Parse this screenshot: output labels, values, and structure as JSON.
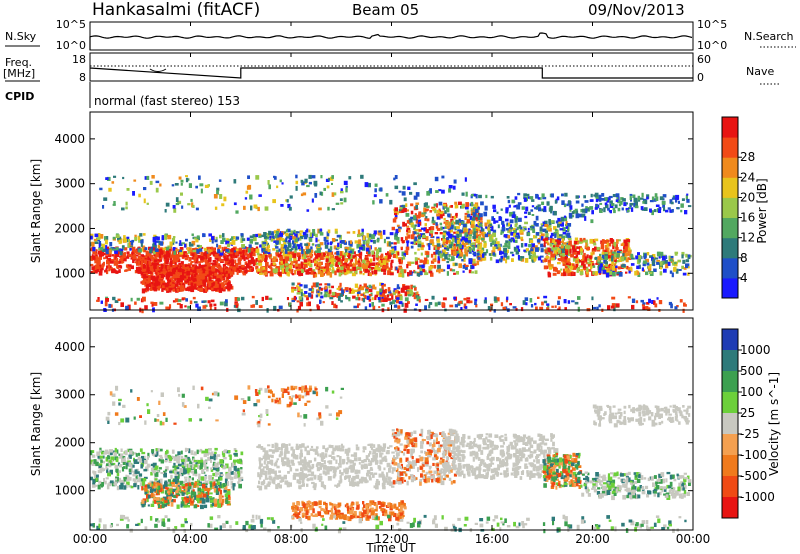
{
  "header": {
    "station": "Hankasalmi (fitACF)",
    "beam": "Beam 05",
    "date": "09/Nov/2013"
  },
  "chart_data": [
    {
      "type": "line",
      "name": "noise",
      "left_label": "N.Sky",
      "right_label": "N.Search",
      "left_ticks": [
        "10^5",
        "10^0"
      ],
      "right_ticks": [
        "10^5",
        "10^0"
      ],
      "right_legend_style": "dotted"
    },
    {
      "type": "line",
      "name": "frequency",
      "left_label_line1": "Freq.",
      "left_label_line2": "[MHz]",
      "left_ticks": [
        "18",
        "8"
      ],
      "right_label": "Nave",
      "right_ticks": [
        "60",
        "0"
      ],
      "right_legend_style": "dotted",
      "cpid_label": "CPID",
      "cpid_text": "normal (fast stereo) 153",
      "freq_steps": [
        [
          0,
          1
        ],
        [
          6,
          0
        ],
        [
          6,
          1
        ],
        [
          18,
          1
        ],
        [
          18,
          0
        ],
        [
          24,
          0
        ]
      ]
    },
    {
      "type": "heatmap",
      "name": "power",
      "ylabel": "Slant Range [km]",
      "yticks": [
        1000,
        2000,
        3000,
        4000
      ],
      "ylim": [
        180,
        4600
      ],
      "colorbar_label": "Power [dB]",
      "colorbar_ticks": [
        "4",
        "8",
        "12",
        "16",
        "20",
        "24",
        "28"
      ],
      "colorbar_colors": [
        "#1a1aff",
        "#1f4fc8",
        "#2e7a7a",
        "#52a860",
        "#9ac84a",
        "#e8c41c",
        "#f08a1c",
        "#f24a16",
        "#e81412"
      ]
    },
    {
      "type": "heatmap",
      "name": "velocity",
      "ylabel": "Slant Range [km]",
      "yticks": [
        1000,
        2000,
        3000,
        4000
      ],
      "ylim": [
        180,
        4600
      ],
      "colorbar_label": "Velocity [m s^-1]",
      "colorbar_ticks": [
        "1000",
        "500",
        "100",
        "25",
        "-25",
        "-100",
        "-500",
        "-1000"
      ],
      "colorbar_colors": [
        "#1f3cb4",
        "#2e7a7a",
        "#3ca050",
        "#6cd03a",
        "#c8c8c0",
        "#f4a050",
        "#f07a1c",
        "#f04a14",
        "#e81412"
      ]
    }
  ],
  "xaxis": {
    "label": "Time UT",
    "ticks": [
      "00:00",
      "04:00",
      "08:00",
      "12:00",
      "16:00",
      "20:00",
      "00:00"
    ],
    "range_hours": [
      0,
      24
    ]
  }
}
